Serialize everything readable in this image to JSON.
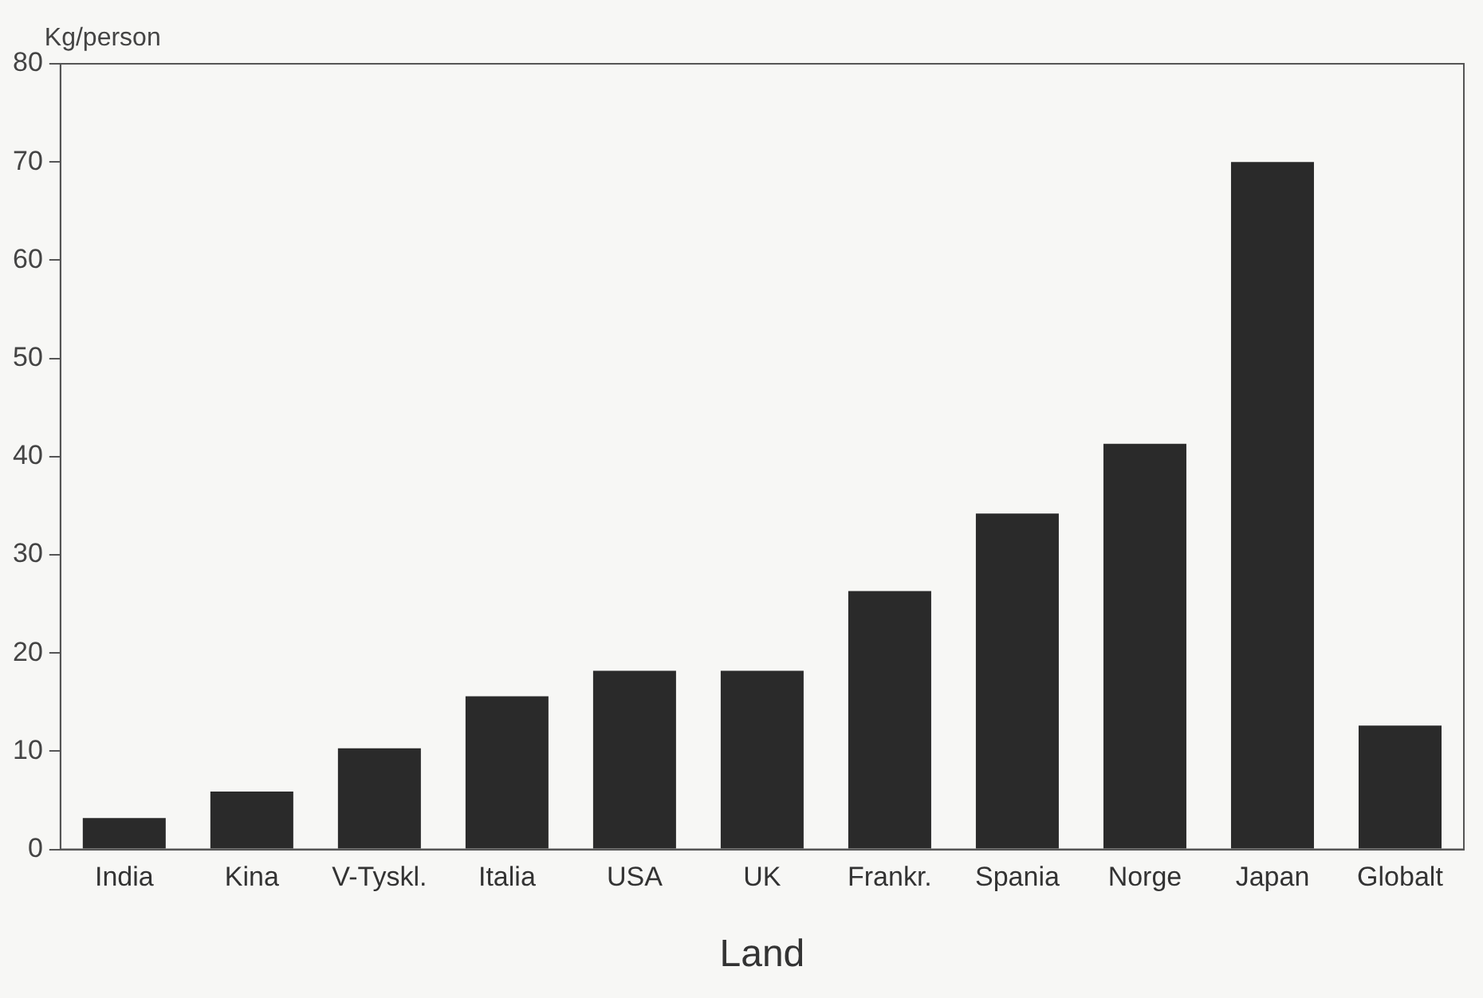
{
  "chart_data": {
    "type": "bar",
    "ylabel": "Kg/person",
    "xlabel": "Land",
    "categories": [
      "India",
      "Kina",
      "V-Tyskl.",
      "Italia",
      "USA",
      "UK",
      "Frankr.",
      "Spania",
      "Norge",
      "Japan",
      "Globalt"
    ],
    "values": [
      3.2,
      5.9,
      10.3,
      15.6,
      18.2,
      18.2,
      26.3,
      34.2,
      41.3,
      70.0,
      12.6
    ],
    "color": "#2a2a2a",
    "ylim": [
      0,
      80
    ],
    "yticks": [
      0,
      10,
      20,
      30,
      40,
      50,
      60,
      70,
      80
    ],
    "grid": false
  }
}
